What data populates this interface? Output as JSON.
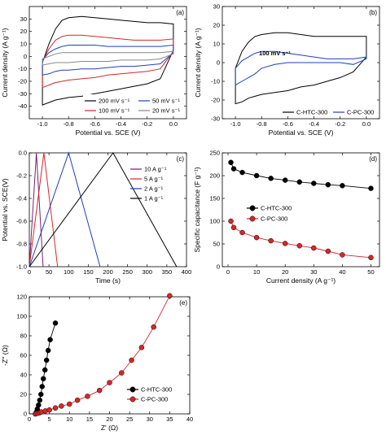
{
  "chart_data": [
    {
      "panel": "a",
      "type": "line",
      "panel_label": "(a)",
      "xlabel": "Potential vs. SCE (V)",
      "ylabel": "Current density (A g⁻¹)",
      "xlim": [
        -1.1,
        0.1
      ],
      "ylim": [
        -50,
        40
      ],
      "xticks": [
        -1.0,
        -0.8,
        -0.6,
        -0.4,
        -0.2,
        0.0
      ],
      "xtick_labels": [
        "-1.0",
        "-0.8",
        "-0.6",
        "-0.4",
        "-0.2",
        "0.0"
      ],
      "yticks": [
        -40,
        -30,
        -20,
        -10,
        0,
        10,
        20,
        30
      ],
      "ytick_labels": [
        "-40",
        "-30",
        "-20",
        "-10",
        "0",
        "10",
        "20",
        "30"
      ],
      "series": [
        {
          "name": "200 mV s⁻¹",
          "color": "#000000",
          "ox": [
            -1.0,
            -0.95,
            -0.9,
            -0.85,
            -0.8,
            -0.7,
            -0.6,
            -0.5,
            -0.4,
            -0.3,
            -0.2,
            -0.1,
            0.0
          ],
          "upper": [
            -5,
            10,
            22,
            29,
            31,
            32,
            31,
            30,
            29,
            28,
            27,
            27,
            26
          ],
          "lower": [
            -39,
            -37,
            -35,
            -34,
            -33,
            -32,
            -30,
            -28,
            -26,
            -24,
            -22,
            -18,
            5
          ]
        },
        {
          "name": "100 mV s⁻¹",
          "color": "#d62728",
          "ox": [
            -1.0,
            -0.95,
            -0.9,
            -0.85,
            -0.8,
            -0.7,
            -0.6,
            -0.5,
            -0.4,
            -0.3,
            -0.2,
            -0.1,
            0.0
          ],
          "upper": [
            -4,
            6,
            13,
            16,
            17,
            17,
            16,
            15,
            14,
            13,
            13,
            13,
            14
          ],
          "lower": [
            -25,
            -23,
            -21,
            -20,
            -19,
            -18,
            -17,
            -15,
            -14,
            -13,
            -12,
            -10,
            4
          ]
        },
        {
          "name": "50 mV s⁻¹",
          "color": "#1f3fbf",
          "ox": [
            -1.0,
            -0.95,
            -0.9,
            -0.85,
            -0.8,
            -0.7,
            -0.6,
            -0.5,
            -0.4,
            -0.3,
            -0.2,
            -0.1,
            0.0
          ],
          "upper": [
            -3,
            3,
            6,
            8,
            9,
            9,
            9,
            8,
            8,
            8,
            8,
            8,
            9
          ],
          "lower": [
            -15,
            -14,
            -12,
            -11,
            -11,
            -10,
            -10,
            -9,
            -8,
            -8,
            -7,
            -6,
            3
          ]
        },
        {
          "name": "20 mV s⁻¹",
          "color": "#888888",
          "ox": [
            -1.0,
            -0.95,
            -0.9,
            -0.85,
            -0.8,
            -0.7,
            -0.6,
            -0.5,
            -0.4,
            -0.3,
            -0.2,
            -0.1,
            0.0
          ],
          "upper": [
            -2,
            0,
            2,
            3,
            3,
            3,
            3,
            3,
            3,
            3,
            3,
            3,
            4
          ],
          "lower": [
            -7,
            -6,
            -5,
            -5,
            -5,
            -4,
            -4,
            -4,
            -3,
            -3,
            -3,
            -2,
            2
          ]
        }
      ]
    },
    {
      "panel": "b",
      "type": "line",
      "panel_label": "(b)",
      "annotation": "100 mV s⁻¹",
      "xlabel": "Potential vs. SCE (V)",
      "ylabel": "Current density (A g⁻¹)",
      "xlim": [
        -1.1,
        0.1
      ],
      "ylim": [
        -30,
        30
      ],
      "xticks": [
        -1.0,
        -0.8,
        -0.6,
        -0.4,
        -0.2,
        0.0
      ],
      "xtick_labels": [
        "-1.0",
        "-0.8",
        "-0.6",
        "-0.4",
        "-0.2",
        "0.0"
      ],
      "yticks": [
        -30,
        -20,
        -10,
        0,
        10,
        20,
        30
      ],
      "ytick_labels": [
        "-30",
        "-20",
        "-10",
        "0",
        "10",
        "20",
        "30"
      ],
      "series": [
        {
          "name": "C-HTC-300",
          "color": "#000000",
          "ox": [
            -1.0,
            -0.95,
            -0.9,
            -0.85,
            -0.8,
            -0.7,
            -0.6,
            -0.5,
            -0.4,
            -0.3,
            -0.2,
            -0.1,
            0.0
          ],
          "upper": [
            -3,
            6,
            11,
            14,
            15,
            16,
            16,
            15,
            14,
            14,
            14,
            14,
            14
          ],
          "lower": [
            -22,
            -21,
            -19,
            -18,
            -17,
            -16,
            -15,
            -13,
            -12,
            -10,
            -8,
            -5,
            3
          ]
        },
        {
          "name": "C-PC-300",
          "color": "#1f3fbf",
          "ox": [
            -1.0,
            -0.95,
            -0.9,
            -0.85,
            -0.8,
            -0.7,
            -0.6,
            -0.5,
            -0.4,
            -0.3,
            -0.2,
            -0.1,
            0.0
          ],
          "upper": [
            -3,
            1,
            3,
            5,
            6,
            6,
            5,
            4,
            3,
            2,
            2,
            2,
            3
          ],
          "lower": [
            -12,
            -10,
            -8,
            -6,
            -3,
            -1,
            0,
            0,
            0,
            0,
            0,
            -1,
            2
          ]
        }
      ]
    },
    {
      "panel": "c",
      "type": "line",
      "panel_label": "(c)",
      "xlabel": "Time (s)",
      "ylabel": "Potential vs. SCE(V)",
      "xlim": [
        0,
        400
      ],
      "ylim": [
        -1.0,
        0.0
      ],
      "xticks": [
        0,
        50,
        100,
        150,
        200,
        250,
        300,
        350,
        400
      ],
      "xtick_labels": [
        "0",
        "50",
        "100",
        "150",
        "200",
        "250",
        "300",
        "350",
        "400"
      ],
      "yticks": [
        -1.0,
        -0.8,
        -0.6,
        -0.4,
        -0.2,
        0.0
      ],
      "ytick_labels": [
        "-1.0",
        "-0.8",
        "-0.6",
        "-0.4",
        "-0.2",
        "0.0"
      ],
      "series": [
        {
          "name": "10 A g⁻¹",
          "color": "#7a1f6e",
          "x": [
            0,
            18,
            35
          ],
          "y": [
            -1.0,
            0.0,
            -1.0
          ]
        },
        {
          "name": "5 A g⁻¹",
          "color": "#d62728",
          "x": [
            0,
            37,
            72
          ],
          "y": [
            -1.0,
            0.0,
            -1.0
          ]
        },
        {
          "name": "2 A g⁻¹",
          "color": "#1f3fbf",
          "x": [
            0,
            100,
            180
          ],
          "y": [
            -1.0,
            0.0,
            -1.0
          ]
        },
        {
          "name": "1 A g⁻¹",
          "color": "#000000",
          "x": [
            0,
            213,
            375
          ],
          "y": [
            -1.0,
            0.0,
            -1.0
          ]
        }
      ]
    },
    {
      "panel": "d",
      "type": "line",
      "panel_label": "(d)",
      "xlabel": "Current density (A g⁻¹)",
      "ylabel": "Specific capacitance (F g⁻¹)",
      "xlim": [
        -2,
        53
      ],
      "ylim": [
        0,
        250
      ],
      "xticks": [
        0,
        10,
        20,
        30,
        40,
        50
      ],
      "xtick_labels": [
        "0",
        "10",
        "20",
        "30",
        "40",
        "50"
      ],
      "yticks": [
        0,
        50,
        100,
        150,
        200,
        250
      ],
      "ytick_labels": [
        "0",
        "50",
        "100",
        "150",
        "200",
        "250"
      ],
      "series": [
        {
          "name": "C-HTC-300",
          "color": "#000000",
          "x": [
            1,
            2,
            5,
            10,
            15,
            20,
            25,
            30,
            35,
            40,
            50
          ],
          "y": [
            229,
            215,
            207,
            200,
            194,
            190,
            186,
            183,
            180,
            178,
            172
          ]
        },
        {
          "name": "C-PC-300",
          "color": "#d62728",
          "x": [
            1,
            2,
            5,
            10,
            15,
            20,
            25,
            30,
            35,
            40,
            50
          ],
          "y": [
            100,
            86,
            75,
            64,
            57,
            51,
            46,
            41,
            34,
            26,
            20
          ]
        }
      ]
    },
    {
      "panel": "e",
      "type": "line",
      "panel_label": "(e)",
      "xlabel": "Z' (Ω)",
      "ylabel": "-Z'' (Ω)",
      "xlim": [
        0,
        40
      ],
      "ylim": [
        0,
        120
      ],
      "xticks": [
        0,
        5,
        10,
        15,
        20,
        25,
        30,
        35,
        40
      ],
      "xtick_labels": [
        "0",
        "5",
        "10",
        "15",
        "20",
        "25",
        "30",
        "35",
        "40"
      ],
      "yticks": [
        0,
        20,
        40,
        60,
        80,
        100,
        120
      ],
      "ytick_labels": [
        "0",
        "20",
        "40",
        "60",
        "80",
        "100",
        "120"
      ],
      "series": [
        {
          "name": "C-HTC-300",
          "color": "#000000",
          "x": [
            1.5,
            1.8,
            2.0,
            2.3,
            2.6,
            2.9,
            3.2,
            3.5,
            3.9,
            4.3,
            4.7,
            5.2,
            6.5
          ],
          "y": [
            0,
            2,
            5,
            9,
            14,
            20,
            28,
            36,
            45,
            55,
            65,
            76,
            93
          ]
        },
        {
          "name": "C-PC-300",
          "color": "#d62728",
          "x": [
            1.5,
            2.0,
            2.5,
            3.0,
            4.0,
            5.0,
            6.5,
            8.0,
            10.0,
            12.0,
            14.5,
            17.5,
            20.0,
            23.0,
            25.5,
            28.0,
            31.0,
            35.0
          ],
          "y": [
            0,
            0.5,
            1,
            2,
            3,
            4,
            6,
            8,
            10,
            14,
            18,
            24,
            32,
            42,
            55,
            68,
            89,
            121
          ]
        }
      ]
    }
  ]
}
